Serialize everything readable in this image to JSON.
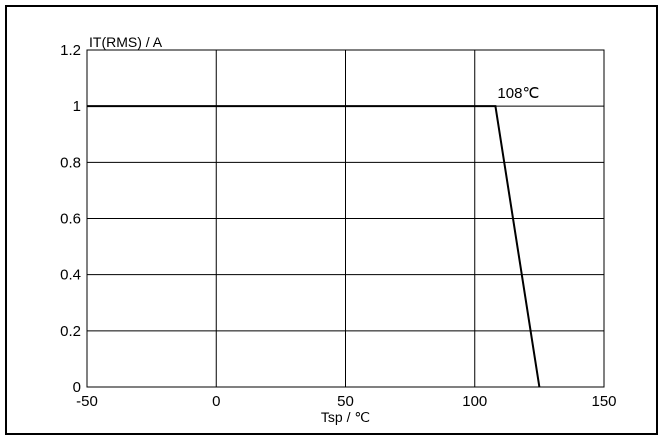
{
  "chart_data": {
    "type": "line",
    "ylabel": "IT(RMS) / A",
    "xlabel": "Tsp / ℃",
    "xlim": [
      -50,
      150
    ],
    "ylim": [
      0,
      1.2
    ],
    "x_ticks": [
      "-50",
      "0",
      "50",
      "100",
      "150"
    ],
    "y_ticks": [
      "0",
      "0.2",
      "0.4",
      "0.6",
      "0.8",
      "1",
      "1.2"
    ],
    "grid": true,
    "series": [
      {
        "x": [
          -50,
          108,
          125
        ],
        "y": [
          1,
          1,
          0
        ]
      }
    ],
    "annotations": [
      {
        "text": "108℃",
        "x": 108,
        "y": 1
      }
    ],
    "colors": {
      "line": "#000000",
      "grid": "#000000"
    }
  }
}
